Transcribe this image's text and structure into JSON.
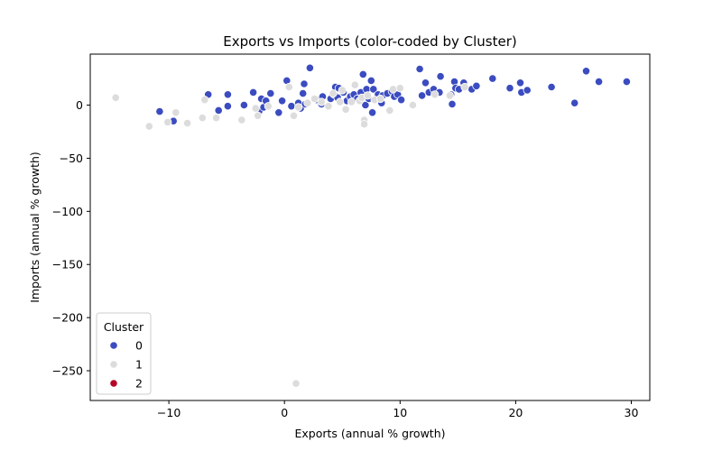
{
  "chart_data": {
    "type": "scatter",
    "title": "Exports vs Imports (color-coded by Cluster)",
    "xlabel": "Exports (annual % growth)",
    "ylabel": "Imports (annual % growth)",
    "xlim": [
      -16.8,
      31.6
    ],
    "ylim": [
      -278,
      48
    ],
    "xticks": [
      -10,
      0,
      10,
      20,
      30
    ],
    "yticks": [
      -250,
      -200,
      -150,
      -100,
      -50,
      0
    ],
    "grid": false,
    "legend": {
      "title": "Cluster",
      "placement": "lower-left",
      "entries": [
        "0",
        "1",
        "2"
      ]
    },
    "colors": {
      "0": "#3b4cc0",
      "1": "#dddcdc",
      "2": "#b40426"
    },
    "series": [
      {
        "name": "0",
        "points": [
          [
            -10.8,
            -6
          ],
          [
            -9.6,
            -15
          ],
          [
            -6.6,
            10
          ],
          [
            -5.7,
            -5
          ],
          [
            -4.9,
            10
          ],
          [
            -4.9,
            -1
          ],
          [
            -3.5,
            0
          ],
          [
            -2.7,
            12
          ],
          [
            -2.2,
            -6
          ],
          [
            -2,
            6
          ],
          [
            -1.8,
            -2
          ],
          [
            -1.6,
            4
          ],
          [
            -1.2,
            11
          ],
          [
            -0.5,
            -7
          ],
          [
            -0.2,
            4
          ],
          [
            0.2,
            23
          ],
          [
            0.6,
            -1
          ],
          [
            1.2,
            2
          ],
          [
            1.4,
            -3
          ],
          [
            1.6,
            11
          ],
          [
            1.7,
            20
          ],
          [
            1.8,
            1
          ],
          [
            2.2,
            35
          ],
          [
            2.8,
            5
          ],
          [
            3.2,
            1
          ],
          [
            3.3,
            8
          ],
          [
            4.0,
            6
          ],
          [
            4.3,
            10
          ],
          [
            4.4,
            17
          ],
          [
            4.6,
            7
          ],
          [
            4.7,
            16
          ],
          [
            5.1,
            12
          ],
          [
            5.4,
            4
          ],
          [
            5.7,
            8
          ],
          [
            6.0,
            10
          ],
          [
            6.3,
            6
          ],
          [
            6.6,
            12
          ],
          [
            6.8,
            29
          ],
          [
            7.0,
            0
          ],
          [
            7.1,
            15
          ],
          [
            7.3,
            6
          ],
          [
            7.5,
            23
          ],
          [
            7.6,
            -7
          ],
          [
            7.7,
            15
          ],
          [
            8.1,
            10
          ],
          [
            8.4,
            2
          ],
          [
            8.5,
            9
          ],
          [
            8.9,
            11
          ],
          [
            9.3,
            13
          ],
          [
            9.5,
            8
          ],
          [
            9.8,
            10
          ],
          [
            10.1,
            5
          ],
          [
            11.7,
            34
          ],
          [
            11.9,
            9
          ],
          [
            12.2,
            21
          ],
          [
            12.5,
            12
          ],
          [
            12.9,
            15
          ],
          [
            13.4,
            12
          ],
          [
            13.5,
            27
          ],
          [
            14.4,
            10
          ],
          [
            14.5,
            1
          ],
          [
            14.7,
            22
          ],
          [
            14.8,
            16
          ],
          [
            15.1,
            15
          ],
          [
            15.5,
            21
          ],
          [
            16.2,
            15
          ],
          [
            16.6,
            18
          ],
          [
            18.0,
            25
          ],
          [
            19.5,
            16
          ],
          [
            20.4,
            21
          ],
          [
            20.5,
            12
          ],
          [
            21.0,
            14
          ],
          [
            23.1,
            17
          ],
          [
            25.1,
            2
          ],
          [
            26.1,
            32
          ],
          [
            27.2,
            22
          ],
          [
            29.6,
            22
          ]
        ]
      },
      {
        "name": "1",
        "points": [
          [
            -14.6,
            7
          ],
          [
            -11.7,
            -20
          ],
          [
            -10.1,
            -16
          ],
          [
            -9.4,
            -7
          ],
          [
            -8.4,
            -17
          ],
          [
            -7.1,
            -12
          ],
          [
            -6.9,
            5
          ],
          [
            -5.9,
            -12
          ],
          [
            -3.7,
            -14
          ],
          [
            -2.5,
            -3
          ],
          [
            -2.3,
            -10
          ],
          [
            -1.4,
            -1
          ],
          [
            0.4,
            17
          ],
          [
            0.8,
            -10
          ],
          [
            1.0,
            -262
          ],
          [
            1.2,
            -2
          ],
          [
            2.0,
            2
          ],
          [
            2.6,
            6
          ],
          [
            3.2,
            3
          ],
          [
            3.8,
            -1
          ],
          [
            4.2,
            11
          ],
          [
            4.8,
            3
          ],
          [
            5.0,
            14
          ],
          [
            5.3,
            -4
          ],
          [
            5.8,
            3
          ],
          [
            6.1,
            19
          ],
          [
            6.5,
            4
          ],
          [
            6.7,
            7
          ],
          [
            6.9,
            -14
          ],
          [
            6.9,
            -18
          ],
          [
            7.2,
            9
          ],
          [
            7.8,
            5
          ],
          [
            8.3,
            6
          ],
          [
            9.1,
            -5
          ],
          [
            9.4,
            15
          ],
          [
            10.0,
            16
          ],
          [
            11.1,
            0
          ],
          [
            13.0,
            10
          ],
          [
            14.3,
            9
          ],
          [
            15.6,
            17
          ]
        ]
      },
      {
        "name": "2",
        "points": []
      }
    ]
  }
}
